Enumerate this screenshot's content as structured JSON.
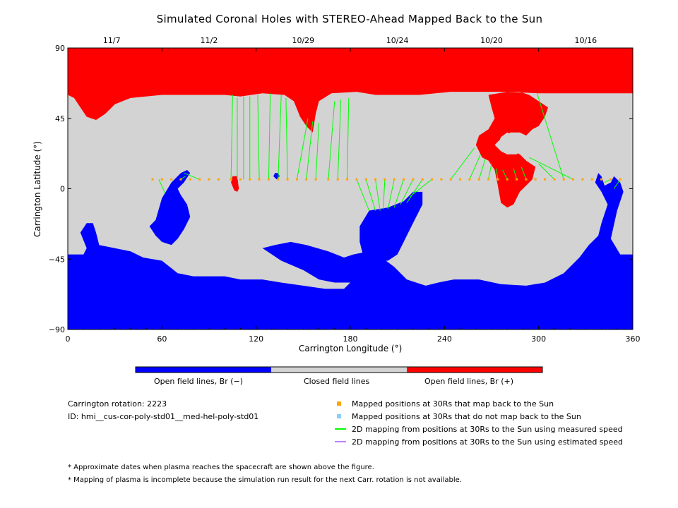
{
  "chart_data": {
    "type": "heatmap",
    "title": "Simulated Coronal Holes with STEREO-Ahead Mapped Back to the Sun",
    "xlabel": "Carrington Longitude (°)",
    "ylabel": "Carrington Latitude (°)",
    "xlim": [
      0,
      360
    ],
    "ylim": [
      -90,
      90
    ],
    "x_ticks": [
      0,
      60,
      120,
      180,
      240,
      300,
      360
    ],
    "y_ticks": [
      -90,
      -45,
      0,
      45,
      90
    ],
    "top_axis_dates": [
      {
        "label": "11/7",
        "lon": 28
      },
      {
        "label": "11/2",
        "lon": 90
      },
      {
        "label": "10/29",
        "lon": 150
      },
      {
        "label": "10/24",
        "lon": 210
      },
      {
        "label": "10/20",
        "lon": 270
      },
      {
        "label": "10/16",
        "lon": 330
      }
    ],
    "colorbar": [
      {
        "label": "Open field lines, Br (−)",
        "color": "#0000ff"
      },
      {
        "label": "Closed field lines",
        "color": "#d3d3d3"
      },
      {
        "label": "Open field lines, Br (+)",
        "color": "#ff0000"
      }
    ],
    "mapped_points_lat": 6,
    "mapped_points_lon": [
      54,
      60,
      66,
      72,
      78,
      84,
      90,
      96,
      104,
      110,
      116,
      122,
      128,
      134,
      140,
      146,
      152,
      158,
      166,
      172,
      178,
      184,
      190,
      196,
      202,
      208,
      214,
      220,
      226,
      232,
      238,
      244,
      250,
      256,
      262,
      268,
      274,
      280,
      286,
      292,
      298,
      304,
      310,
      316,
      322,
      328,
      334,
      340,
      346,
      352
    ],
    "mapping_lines": [
      {
        "from": [
          58,
          6
        ],
        "to": [
          62,
          -3
        ]
      },
      {
        "from": [
          72,
          6
        ],
        "to": [
          75,
          8
        ]
      },
      {
        "from": [
          84,
          6
        ],
        "to": [
          74,
          10
        ]
      },
      {
        "from": [
          104,
          6
        ],
        "to": [
          105,
          60
        ]
      },
      {
        "from": [
          108,
          6
        ],
        "to": [
          108,
          58
        ]
      },
      {
        "from": [
          112,
          6
        ],
        "to": [
          112,
          59
        ]
      },
      {
        "from": [
          116,
          6
        ],
        "to": [
          116,
          59
        ]
      },
      {
        "from": [
          122,
          6
        ],
        "to": [
          121,
          60
        ]
      },
      {
        "from": [
          128,
          6
        ],
        "to": [
          129,
          61
        ]
      },
      {
        "from": [
          134,
          6
        ],
        "to": [
          136,
          60
        ]
      },
      {
        "from": [
          140,
          6
        ],
        "to": [
          139,
          58
        ]
      },
      {
        "from": [
          146,
          6
        ],
        "to": [
          153,
          45
        ]
      },
      {
        "from": [
          152,
          6
        ],
        "to": [
          156,
          43
        ]
      },
      {
        "from": [
          158,
          6
        ],
        "to": [
          160,
          42
        ]
      },
      {
        "from": [
          166,
          6
        ],
        "to": [
          170,
          56
        ]
      },
      {
        "from": [
          172,
          6
        ],
        "to": [
          174,
          57
        ]
      },
      {
        "from": [
          178,
          6
        ],
        "to": [
          179,
          58
        ]
      },
      {
        "from": [
          184,
          6
        ],
        "to": [
          192,
          -14
        ]
      },
      {
        "from": [
          190,
          6
        ],
        "to": [
          196,
          -14
        ]
      },
      {
        "from": [
          196,
          6
        ],
        "to": [
          199,
          -14
        ]
      },
      {
        "from": [
          202,
          6
        ],
        "to": [
          201,
          -13
        ]
      },
      {
        "from": [
          208,
          6
        ],
        "to": [
          204,
          -13
        ]
      },
      {
        "from": [
          214,
          6
        ],
        "to": [
          208,
          -12
        ]
      },
      {
        "from": [
          220,
          6
        ],
        "to": [
          212,
          -10
        ]
      },
      {
        "from": [
          226,
          6
        ],
        "to": [
          216,
          -9
        ]
      },
      {
        "from": [
          232,
          6
        ],
        "to": [
          218,
          -5
        ]
      },
      {
        "from": [
          244,
          6
        ],
        "to": [
          259,
          26
        ]
      },
      {
        "from": [
          256,
          6
        ],
        "to": [
          263,
          22
        ]
      },
      {
        "from": [
          262,
          6
        ],
        "to": [
          266,
          19
        ]
      },
      {
        "from": [
          268,
          6
        ],
        "to": [
          270,
          16
        ]
      },
      {
        "from": [
          274,
          6
        ],
        "to": [
          273,
          13
        ]
      },
      {
        "from": [
          280,
          6
        ],
        "to": [
          277,
          12
        ]
      },
      {
        "from": [
          286,
          6
        ],
        "to": [
          284,
          13
        ]
      },
      {
        "from": [
          292,
          6
        ],
        "to": [
          289,
          14
        ]
      },
      {
        "from": [
          310,
          6
        ],
        "to": [
          300,
          16
        ]
      },
      {
        "from": [
          316,
          6
        ],
        "to": [
          299,
          61
        ]
      },
      {
        "from": [
          322,
          6
        ],
        "to": [
          294,
          20
        ]
      },
      {
        "from": [
          346,
          6
        ],
        "to": [
          342,
          4
        ]
      },
      {
        "from": [
          352,
          6
        ],
        "to": [
          348,
          0
        ]
      }
    ]
  },
  "legend": {
    "cr_label": "Carrington rotation: 2223",
    "id_label": "ID: hmi__cus-cor-poly-std01__med-hel-poly-std01",
    "items": [
      {
        "label": "Mapped positions at 30Rs that map back to the Sun",
        "color": "#ffa500"
      },
      {
        "label": "Mapped positions at 30Rs that do not map back to the Sun",
        "color": "#87cefa"
      },
      {
        "label": "2D mapping from positions at 30Rs to the Sun using measured speed",
        "color": "#00ff00"
      },
      {
        "label": "2D mapping from positions at 30Rs to the Sun using estimated speed",
        "color": "#bf80ff"
      }
    ]
  },
  "notes": [
    "* Approximate dates when plasma reaches the spacecraft are shown above the figure.",
    "* Mapping of plasma is incomplete because the simulation run result for the next Carr. rotation is not available."
  ],
  "colors": {
    "open_neg": "#0000ff",
    "closed": "#d3d3d3",
    "open_pos": "#ff0000",
    "points": "#ffa500",
    "lines": "#00ff00"
  }
}
